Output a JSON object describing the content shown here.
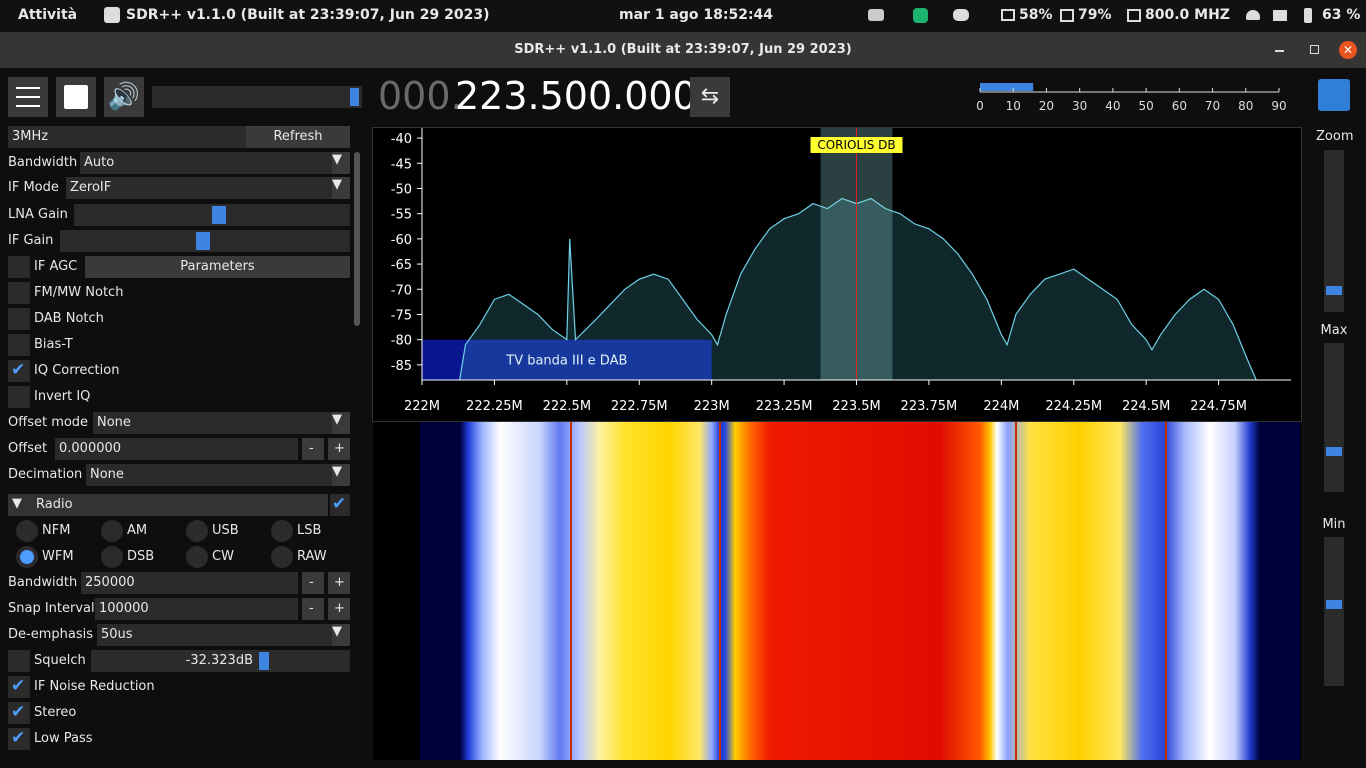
{
  "topbar": {
    "activities": "Attività",
    "app": "SDR++ v1.1.0 (Built at 23:39:07, Jun 29 2023)",
    "clock": "mar 1 ago  18:52:44",
    "cpu": "58%",
    "memory": "79%",
    "cpu_freq": "800.0 MHZ",
    "battery": "63 %"
  },
  "window": {
    "title": "SDR++ v1.1.0 (Built at 23:39:07, Jun 29 2023)"
  },
  "toolbar": {
    "freq_dim": "000.",
    "freq": "223.500.000",
    "snr": {
      "value": 16,
      "lim": [
        0,
        90
      ],
      "ticks": [
        0,
        10,
        20,
        30,
        40,
        50,
        60,
        70,
        80,
        90
      ]
    }
  },
  "sidebar": {
    "sample_rate": "3MHz",
    "refresh": "Refresh",
    "bandwidth": {
      "label": "Bandwidth",
      "value": "Auto"
    },
    "if_mode": {
      "label": "IF Mode",
      "value": "ZeroIF"
    },
    "lna_gain": {
      "label": "LNA Gain"
    },
    "if_gain": {
      "label": "IF Gain"
    },
    "if_agc": {
      "label": "IF AGC",
      "checked": false,
      "button": "Parameters"
    },
    "fm_notch": {
      "label": "FM/MW Notch",
      "checked": false
    },
    "dab_notch": {
      "label": "DAB Notch",
      "checked": false
    },
    "bias_t": {
      "label": "Bias-T",
      "checked": false
    },
    "iq_correction": {
      "label": "IQ Correction",
      "checked": true
    },
    "invert_iq": {
      "label": "Invert IQ",
      "checked": false
    },
    "offset_mode": {
      "label": "Offset mode",
      "value": "None"
    },
    "offset": {
      "label": "Offset",
      "value": "0.000000",
      "minus": "-",
      "plus": "+"
    },
    "decimation": {
      "label": "Decimation",
      "value": "None"
    },
    "radio": {
      "title": "Radio",
      "enabled": true,
      "modes": [
        "NFM",
        "AM",
        "USB",
        "LSB",
        "WFM",
        "DSB",
        "CW",
        "RAW"
      ],
      "selected": 4
    },
    "radio_bandwidth": {
      "label": "Bandwidth",
      "value": "250000",
      "minus": "-",
      "plus": "+"
    },
    "snap_interval": {
      "label": "Snap Interval",
      "value": "100000",
      "minus": "-",
      "plus": "+"
    },
    "deemphasis": {
      "label": "De-emphasis",
      "value": "50us"
    },
    "squelch": {
      "label": "Squelch",
      "checked": false,
      "value": "-32.323dB"
    },
    "if_nr": {
      "label": "IF Noise Reduction",
      "checked": true
    },
    "stereo": {
      "label": "Stereo",
      "checked": true
    },
    "low_pass": {
      "label": "Low Pass",
      "checked": true
    }
  },
  "spectrum": {
    "xlim": [
      222,
      225
    ],
    "ylim": [
      -88,
      -38
    ],
    "yticks": [
      -40,
      -45,
      -50,
      -55,
      -60,
      -65,
      -70,
      -75,
      -80,
      -85
    ],
    "xticks": [
      {
        "value": 222,
        "label": "222M"
      },
      {
        "value": 222.25,
        "label": "222.25M"
      },
      {
        "value": 222.5,
        "label": "222.5M"
      },
      {
        "value": 222.75,
        "label": "222.75M"
      },
      {
        "value": 223,
        "label": "223M"
      },
      {
        "value": 223.25,
        "label": "223.25M"
      },
      {
        "value": 223.5,
        "label": "223.5M"
      },
      {
        "value": 223.75,
        "label": "223.75M"
      },
      {
        "value": 224,
        "label": "224M"
      },
      {
        "value": 224.25,
        "label": "224.25M"
      },
      {
        "value": 224.5,
        "label": "224.5M"
      },
      {
        "value": 224.75,
        "label": "224.75M"
      }
    ],
    "x": [
      222.13,
      222.15,
      222.2,
      222.25,
      222.3,
      222.35,
      222.4,
      222.45,
      222.5,
      222.51,
      222.53,
      222.6,
      222.65,
      222.7,
      222.75,
      222.8,
      222.85,
      222.9,
      222.95,
      223.0,
      223.02,
      223.05,
      223.1,
      223.15,
      223.2,
      223.25,
      223.3,
      223.35,
      223.4,
      223.45,
      223.5,
      223.55,
      223.6,
      223.65,
      223.7,
      223.75,
      223.8,
      223.85,
      223.9,
      223.95,
      224.0,
      224.02,
      224.05,
      224.1,
      224.15,
      224.2,
      224.25,
      224.3,
      224.35,
      224.4,
      224.45,
      224.5,
      224.52,
      224.55,
      224.6,
      224.65,
      224.7,
      224.75,
      224.8,
      224.85,
      224.88
    ],
    "values": [
      -88,
      -81,
      -77,
      -72,
      -71,
      -73,
      -75,
      -78,
      -80,
      -60,
      -80,
      -76,
      -73,
      -70,
      -68,
      -67,
      -68,
      -72,
      -76,
      -79,
      -81,
      -75,
      -67,
      -62,
      -58,
      -56,
      -55,
      -53,
      -54,
      -52,
      -53,
      -52,
      -54,
      -55,
      -57,
      -58,
      -60,
      -63,
      -67,
      -72,
      -79,
      -81,
      -75,
      -71,
      -68,
      -67,
      -66,
      -68,
      -70,
      -72,
      -77,
      -80,
      -82,
      -79,
      -75,
      -72,
      -70,
      -72,
      -77,
      -84,
      -88
    ],
    "vfo": {
      "label": "CORIOLIS DB",
      "start": 223.376,
      "center": 223.5,
      "end": 223.624
    },
    "band": {
      "label": "TV banda III e DAB",
      "start": 222,
      "end": 223,
      "top": -80
    }
  },
  "side_sliders": {
    "zoom": "Zoom",
    "max": "Max",
    "min": "Min"
  }
}
